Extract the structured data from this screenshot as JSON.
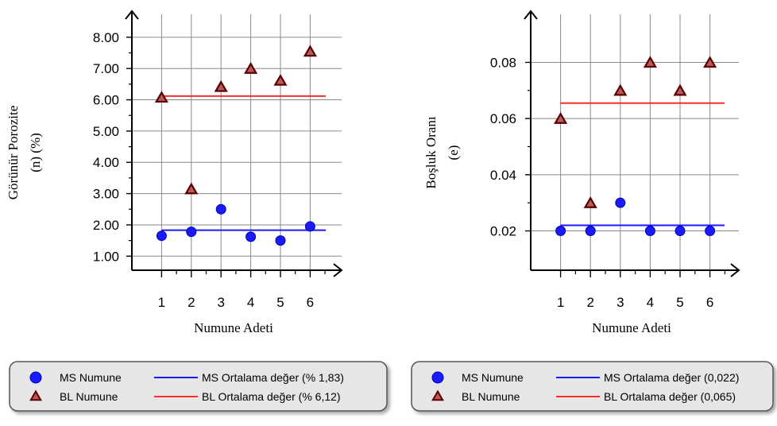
{
  "colors": {
    "ms": "#1a1aff",
    "bl": "#ff2a2a",
    "triangle_fill": "#b85a5a",
    "triangle_stroke": "#5a0000",
    "grid": "#8a8a8a",
    "legend_bg": "#e6e6e6"
  },
  "chart_data": [
    {
      "type": "scatter",
      "title": "",
      "xlabel": "Numune Adeti",
      "ylabel_line1": "Görünür Porozite",
      "ylabel_line2": "(n) (%)",
      "categories": [
        "1",
        "2",
        "3",
        "4",
        "5",
        "6"
      ],
      "x": [
        1,
        2,
        3,
        4,
        5,
        6
      ],
      "xlim": [
        0,
        6.8
      ],
      "ylim": [
        0.55,
        8.6
      ],
      "yticks": [
        1.0,
        2.0,
        3.0,
        4.0,
        5.0,
        6.0,
        7.0,
        8.0
      ],
      "ytick_labels": [
        "1.00",
        "2.00",
        "3.00",
        "4.00",
        "5.00",
        "6.00",
        "7.00",
        "8.00"
      ],
      "grid": true,
      "series": [
        {
          "name": "MS Numune",
          "marker": "circle",
          "values": [
            1.65,
            1.78,
            2.5,
            1.62,
            1.5,
            1.95
          ]
        },
        {
          "name": "BL Numune",
          "marker": "triangle",
          "values": [
            6.08,
            3.15,
            6.42,
            7.0,
            6.62,
            7.55
          ]
        }
      ],
      "mean_lines": [
        {
          "name": "MS Ortalama değer (% 1,83)",
          "series": "ms",
          "value": 1.83
        },
        {
          "name": "BL Ortalama değer (% 6,12)",
          "series": "bl",
          "value": 6.12
        }
      ],
      "legend_position": "bottom"
    },
    {
      "type": "scatter",
      "title": "",
      "xlabel": "Numune Adeti",
      "ylabel_line1": "Boşluk Oranı",
      "ylabel_line2": "(e)",
      "categories": [
        "1",
        "2",
        "3",
        "4",
        "5",
        "6"
      ],
      "x": [
        1,
        2,
        3,
        4,
        5,
        6
      ],
      "xlim": [
        0,
        6.8
      ],
      "ylim": [
        0.006,
        0.096
      ],
      "yticks": [
        0.02,
        0.04,
        0.06,
        0.08
      ],
      "ytick_labels": [
        "0.02",
        "0.04",
        "0.06",
        "0.08"
      ],
      "grid": true,
      "series": [
        {
          "name": "MS Numune",
          "marker": "circle",
          "values": [
            0.02,
            0.02,
            0.03,
            0.02,
            0.02,
            0.02
          ]
        },
        {
          "name": "BL Numune",
          "marker": "triangle",
          "values": [
            0.06,
            0.03,
            0.07,
            0.08,
            0.07,
            0.08
          ]
        }
      ],
      "mean_lines": [
        {
          "name": "MS Ortalama değer (0,022)",
          "series": "ms",
          "value": 0.022
        },
        {
          "name": "BL Ortalama değer (0,065)",
          "series": "bl",
          "value": 0.0655
        }
      ],
      "legend_position": "bottom"
    }
  ]
}
